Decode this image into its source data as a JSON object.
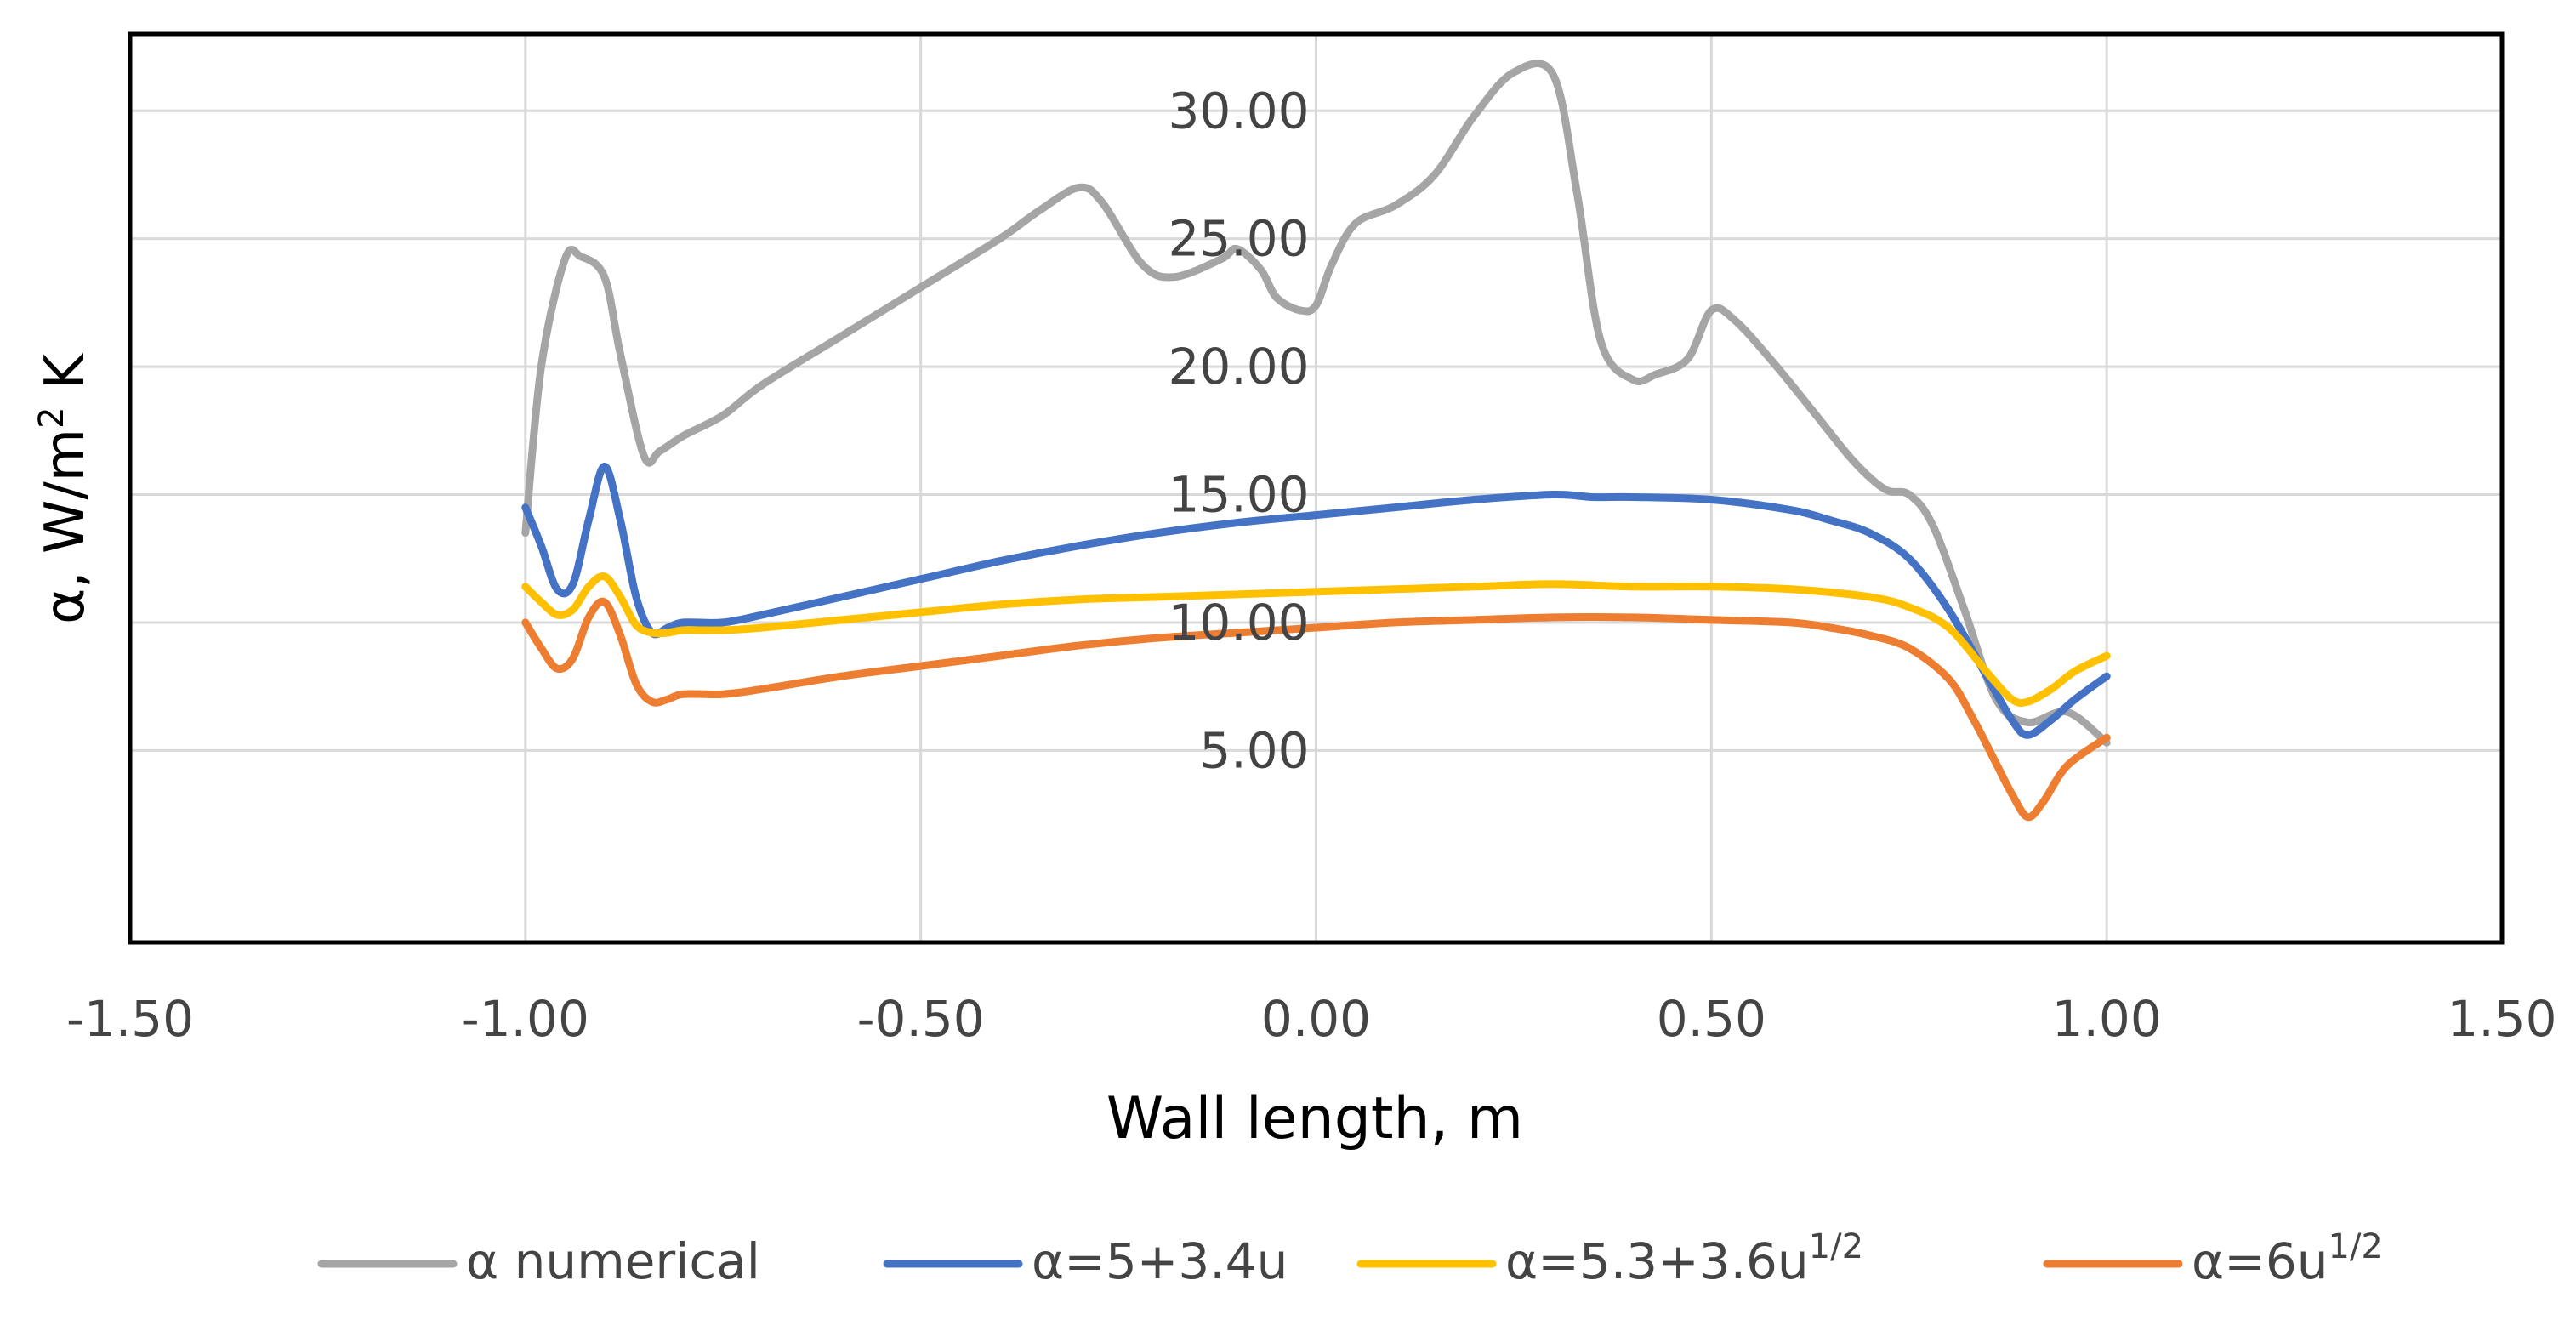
{
  "chart_data": {
    "type": "line",
    "title": "",
    "xlabel": "Wall length, m",
    "ylabel_parts": {
      "main": "α, W/m",
      "sup": "2",
      "tail": " K"
    },
    "xlim": [
      -1.5,
      1.5
    ],
    "ylim": [
      -2.5,
      33
    ],
    "x_ticks": [
      -1.5,
      -1.0,
      -0.5,
      0.0,
      0.5,
      1.0,
      1.5
    ],
    "x_tick_labels": [
      "-1.50",
      "-1.00",
      "-0.50",
      "0.00",
      "0.50",
      "1.00",
      "1.50"
    ],
    "y_ticks": [
      5,
      10,
      15,
      20,
      25,
      30
    ],
    "y_tick_labels": [
      "5.00",
      "10.00",
      "15.00",
      "20.00",
      "25.00",
      "30.00"
    ],
    "grid": true,
    "legend_position": "bottom",
    "series": [
      {
        "name": "α numerical",
        "legend": {
          "main": "α  numerical",
          "sup": ""
        },
        "color": "#a5a5a5",
        "x": [
          -1.0,
          -0.98,
          -0.95,
          -0.93,
          -0.9,
          -0.88,
          -0.85,
          -0.83,
          -0.8,
          -0.75,
          -0.7,
          -0.6,
          -0.5,
          -0.4,
          -0.35,
          -0.3,
          -0.27,
          -0.22,
          -0.18,
          -0.12,
          -0.1,
          -0.07,
          -0.05,
          -0.02,
          0.0,
          0.02,
          0.05,
          0.1,
          0.15,
          0.2,
          0.25,
          0.3,
          0.33,
          0.36,
          0.4,
          0.43,
          0.47,
          0.5,
          0.53,
          0.58,
          0.63,
          0.68,
          0.72,
          0.75,
          0.78,
          0.82,
          0.86,
          0.9,
          0.95,
          1.0
        ],
        "y": [
          13.5,
          20.0,
          24.2,
          24.3,
          23.5,
          20.5,
          16.5,
          16.7,
          17.3,
          18.1,
          19.3,
          21.2,
          23.1,
          25.0,
          26.1,
          27.0,
          26.4,
          24.0,
          23.5,
          24.2,
          24.6,
          23.8,
          22.7,
          22.2,
          22.4,
          24.0,
          25.6,
          26.3,
          27.5,
          29.8,
          31.5,
          31.4,
          26.8,
          21.0,
          19.5,
          19.7,
          20.3,
          22.2,
          21.8,
          20.1,
          18.2,
          16.3,
          15.2,
          15.0,
          13.8,
          10.5,
          7.0,
          6.1,
          6.5,
          5.3
        ]
      },
      {
        "name": "α=5+3.4u",
        "legend": {
          "main": "α=5+3.4u",
          "sup": ""
        },
        "color": "#4472c4",
        "x": [
          -1.0,
          -0.98,
          -0.96,
          -0.94,
          -0.92,
          -0.9,
          -0.88,
          -0.86,
          -0.84,
          -0.82,
          -0.8,
          -0.75,
          -0.7,
          -0.6,
          -0.5,
          -0.4,
          -0.3,
          -0.2,
          -0.1,
          0.0,
          0.1,
          0.2,
          0.3,
          0.35,
          0.4,
          0.5,
          0.6,
          0.65,
          0.7,
          0.75,
          0.8,
          0.85,
          0.88,
          0.9,
          0.93,
          0.96,
          1.0
        ],
        "y": [
          14.5,
          13.0,
          11.3,
          11.5,
          14.0,
          16.1,
          14.0,
          11.0,
          9.6,
          9.8,
          10.0,
          10.0,
          10.3,
          11.0,
          11.7,
          12.4,
          13.0,
          13.5,
          13.9,
          14.2,
          14.5,
          14.8,
          15.0,
          14.9,
          14.9,
          14.8,
          14.4,
          14.0,
          13.5,
          12.5,
          10.5,
          7.8,
          6.2,
          5.6,
          6.2,
          7.0,
          7.9
        ]
      },
      {
        "name": "α=5.3+3.6u^1/2",
        "legend": {
          "main": "α=5.3+3.6u",
          "sup": "1/2"
        },
        "color": "#ffc000",
        "x": [
          -1.0,
          -0.98,
          -0.96,
          -0.94,
          -0.92,
          -0.9,
          -0.88,
          -0.86,
          -0.84,
          -0.82,
          -0.8,
          -0.75,
          -0.7,
          -0.6,
          -0.5,
          -0.4,
          -0.3,
          -0.2,
          -0.1,
          0.0,
          0.1,
          0.2,
          0.3,
          0.4,
          0.5,
          0.6,
          0.7,
          0.75,
          0.8,
          0.85,
          0.88,
          0.9,
          0.93,
          0.96,
          1.0
        ],
        "y": [
          11.4,
          10.8,
          10.3,
          10.5,
          11.4,
          11.8,
          11.0,
          9.9,
          9.6,
          9.6,
          9.7,
          9.7,
          9.8,
          10.1,
          10.4,
          10.7,
          10.9,
          11.0,
          11.1,
          11.2,
          11.3,
          11.4,
          11.5,
          11.4,
          11.4,
          11.3,
          11.0,
          10.6,
          9.8,
          8.0,
          7.0,
          6.9,
          7.4,
          8.1,
          8.7
        ]
      },
      {
        "name": "α=6u^1/2",
        "legend": {
          "main": "α=6u",
          "sup": "1/2"
        },
        "color": "#ed7d31",
        "x": [
          -1.0,
          -0.98,
          -0.96,
          -0.94,
          -0.92,
          -0.9,
          -0.88,
          -0.86,
          -0.84,
          -0.82,
          -0.8,
          -0.75,
          -0.7,
          -0.6,
          -0.5,
          -0.4,
          -0.3,
          -0.2,
          -0.1,
          0.0,
          0.1,
          0.2,
          0.3,
          0.4,
          0.5,
          0.6,
          0.65,
          0.7,
          0.75,
          0.8,
          0.83,
          0.86,
          0.88,
          0.9,
          0.92,
          0.95,
          1.0
        ],
        "y": [
          10.0,
          9.0,
          8.2,
          8.6,
          10.2,
          10.8,
          9.5,
          7.6,
          6.9,
          7.0,
          7.2,
          7.2,
          7.4,
          7.9,
          8.3,
          8.7,
          9.1,
          9.4,
          9.6,
          9.8,
          10.0,
          10.1,
          10.2,
          10.2,
          10.1,
          10.0,
          9.8,
          9.5,
          9.0,
          7.8,
          6.3,
          4.5,
          3.3,
          2.4,
          3.0,
          4.4,
          5.5
        ]
      }
    ]
  }
}
